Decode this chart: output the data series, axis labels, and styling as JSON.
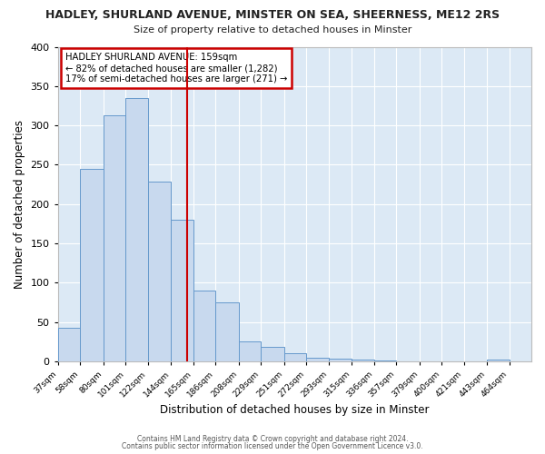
{
  "title": "HADLEY, SHURLAND AVENUE, MINSTER ON SEA, SHEERNESS, ME12 2RS",
  "subtitle": "Size of property relative to detached houses in Minster",
  "xlabel": "Distribution of detached houses by size in Minster",
  "ylabel": "Number of detached properties",
  "bin_labels": [
    "37sqm",
    "58sqm",
    "80sqm",
    "101sqm",
    "122sqm",
    "144sqm",
    "165sqm",
    "186sqm",
    "208sqm",
    "229sqm",
    "251sqm",
    "272sqm",
    "293sqm",
    "315sqm",
    "336sqm",
    "357sqm",
    "379sqm",
    "400sqm",
    "421sqm",
    "443sqm",
    "464sqm"
  ],
  "bin_edges": [
    37,
    58,
    80,
    101,
    122,
    144,
    165,
    186,
    208,
    229,
    251,
    272,
    293,
    315,
    336,
    357,
    379,
    400,
    421,
    443,
    464,
    485
  ],
  "bar_heights": [
    42,
    245,
    313,
    335,
    228,
    180,
    90,
    75,
    25,
    18,
    10,
    5,
    3,
    2,
    1,
    0,
    0,
    0,
    0,
    2,
    0
  ],
  "bar_color": "#c8d9ee",
  "bar_edge_color": "#6699cc",
  "vline_x": 159,
  "vline_color": "#cc0000",
  "annotation_line1": "HADLEY SHURLAND AVENUE: 159sqm",
  "annotation_line2": "← 82% of detached houses are smaller (1,282)",
  "annotation_line3": "17% of semi-detached houses are larger (271) →",
  "annotation_box_color": "#cc0000",
  "ylim": [
    0,
    400
  ],
  "yticks": [
    0,
    50,
    100,
    150,
    200,
    250,
    300,
    350,
    400
  ],
  "fig_background": "#ffffff",
  "plot_background": "#dce9f5",
  "grid_color": "#ffffff",
  "footer_line1": "Contains HM Land Registry data © Crown copyright and database right 2024.",
  "footer_line2": "Contains public sector information licensed under the Open Government Licence v3.0."
}
